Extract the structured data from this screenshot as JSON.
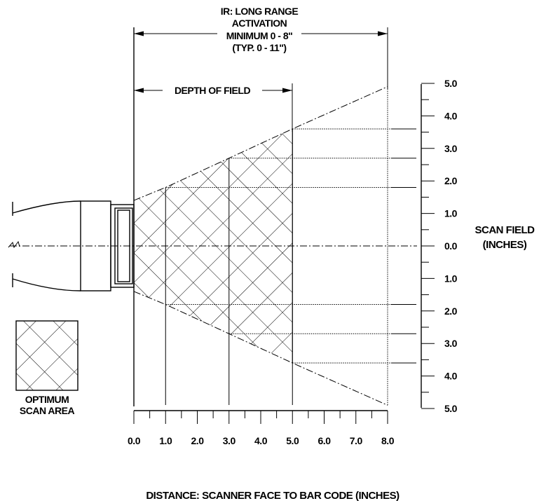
{
  "header": {
    "lines": [
      "IR: LONG RANGE",
      "ACTIVATION",
      "MINIMUM 0 - 8\"",
      "(TYP. 0 - 11\")"
    ]
  },
  "depth_of_field_label": "DEPTH OF FIELD",
  "legend_label_lines": [
    "OPTIMUM",
    "SCAN AREA"
  ],
  "scan_field_label_lines": [
    "SCAN FIELD",
    "(INCHES)"
  ],
  "x_axis_title": "DISTANCE: SCANNER FACE TO BAR CODE (INCHES)",
  "x_ticks": [
    {
      "value": 0,
      "label": "0.0"
    },
    {
      "value": 1,
      "label": "1.0"
    },
    {
      "value": 2,
      "label": "2.0"
    },
    {
      "value": 3,
      "label": "3.0"
    },
    {
      "value": 4,
      "label": "4.0"
    },
    {
      "value": 5,
      "label": "5.0"
    },
    {
      "value": 6,
      "label": "6.0"
    },
    {
      "value": 7,
      "label": "7.0"
    },
    {
      "value": 8,
      "label": "8.0"
    }
  ],
  "y_ticks": [
    {
      "value": 5,
      "label": "5.0"
    },
    {
      "value": 4,
      "label": "4.0"
    },
    {
      "value": 3,
      "label": "3.0"
    },
    {
      "value": 2,
      "label": "2.0"
    },
    {
      "value": 1,
      "label": "1.0"
    },
    {
      "value": 0,
      "label": "0.0"
    },
    {
      "value": -1,
      "label": "1.0"
    },
    {
      "value": -2,
      "label": "2.0"
    },
    {
      "value": -3,
      "label": "3.0"
    },
    {
      "value": -4,
      "label": "4.0"
    },
    {
      "value": -5,
      "label": "5.0"
    }
  ],
  "activation_range": [
    0,
    8
  ],
  "depth_of_field_range": [
    0,
    5
  ],
  "field_half_width": [
    {
      "distance": 0,
      "half_width": 1.4
    },
    {
      "distance": 1,
      "half_width": 1.8
    },
    {
      "distance": 3,
      "half_width": 2.7
    },
    {
      "distance": 5,
      "half_width": 3.6
    },
    {
      "distance": 8,
      "half_width": 4.9
    }
  ]
}
